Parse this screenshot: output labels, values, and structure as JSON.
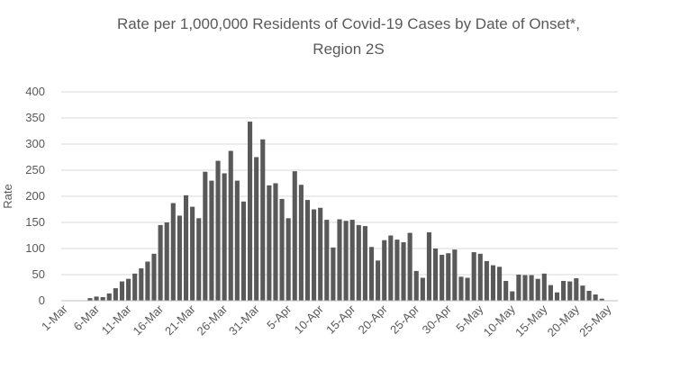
{
  "chart_data": {
    "type": "bar",
    "title_line1": "Rate per 1,000,000 Residents of Covid-19 Cases by Date of Onset*,",
    "title_line2": "Region 2S",
    "ylabel": "Rate",
    "ylim": [
      0,
      400
    ],
    "y_ticks": [
      "0",
      "50",
      "100",
      "150",
      "200",
      "250",
      "300",
      "350",
      "400"
    ],
    "y_tick_values": [
      0,
      50,
      100,
      150,
      200,
      250,
      300,
      350,
      400
    ],
    "grid": true,
    "x_tick_labels": [
      "1-Mar",
      "6-Mar",
      "11-Mar",
      "16-Mar",
      "21-Mar",
      "26-Mar",
      "31-Mar",
      "5-Apr",
      "10-Apr",
      "15-Apr",
      "20-Apr",
      "25-Apr",
      "30-Apr",
      "5-May",
      "10-May",
      "15-May",
      "20-May",
      "25-May"
    ],
    "start_date": "1-Mar",
    "values": [
      0,
      0,
      0,
      0,
      5,
      8,
      7,
      14,
      24,
      37,
      42,
      52,
      62,
      75,
      90,
      145,
      150,
      187,
      163,
      202,
      180,
      158,
      247,
      230,
      268,
      244,
      287,
      230,
      190,
      343,
      275,
      309,
      221,
      225,
      195,
      158,
      248,
      222,
      193,
      175,
      178,
      155,
      102,
      156,
      153,
      155,
      145,
      143,
      103,
      77,
      116,
      125,
      117,
      112,
      130,
      57,
      44,
      131,
      100,
      88,
      91,
      98,
      46,
      44,
      93,
      90,
      76,
      68,
      65,
      38,
      18,
      50,
      49,
      49,
      42,
      52,
      30,
      16,
      38,
      37,
      43,
      29,
      19,
      12,
      4,
      0,
      0
    ]
  }
}
